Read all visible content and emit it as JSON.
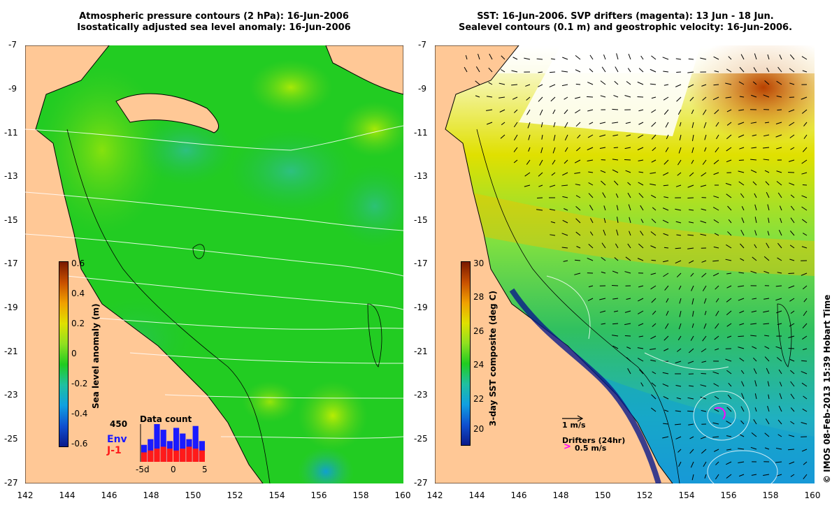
{
  "left_panel": {
    "title_line1": "Atmospheric pressure contours (2 hPa): 16-Jun-2006",
    "title_line2": "Isostatically adjusted sea level anomaly: 16-Jun-2006",
    "colorbar_label": "Sea level anomaly (m)",
    "colorbar_ticks": [
      "0.6",
      "0.4",
      "0.2",
      "0",
      "-0.2",
      "-0.4",
      "-0.6"
    ],
    "data_count_title": "Data count",
    "data_count_max": "450",
    "legend_env": "Env",
    "legend_j1": "J-1",
    "hist_xticks": [
      "-5d",
      "0",
      "5"
    ],
    "hist_env_values": [
      0.45,
      0.6,
      1.0,
      0.85,
      0.55,
      0.9,
      0.75,
      0.6,
      0.95,
      0.55
    ],
    "hist_j1_values": [
      0.25,
      0.3,
      0.35,
      0.4,
      0.35,
      0.3,
      0.35,
      0.4,
      0.35,
      0.3
    ],
    "colors": {
      "env": "#1a1aff",
      "j1": "#ff1a1a"
    }
  },
  "right_panel": {
    "title_line1": "SST: 16-Jun-2006. SVP drifters (magenta): 13 Jun - 18 Jun.",
    "title_line2": "Sealevel contours (0.1 m) and geostrophic velocity: 16-Jun-2006.",
    "colorbar_label": "3-day SST composite (deg C)",
    "colorbar_ticks": [
      "30",
      "28",
      "26",
      "24",
      "22",
      "20"
    ],
    "velocity_scale_label": "1 m/s",
    "drifters_label": "Drifters (24hr)",
    "drifters_scale_label": "0.5 m/s"
  },
  "axes": {
    "y_ticks": [
      "-7",
      "-9",
      "-11",
      "-13",
      "-15",
      "-17",
      "-19",
      "-21",
      "-23",
      "-25",
      "-27"
    ],
    "x_ticks": [
      "142",
      "144",
      "146",
      "148",
      "150",
      "152",
      "154",
      "156",
      "158",
      "160"
    ]
  },
  "copyright": "© IMOS 08-Feb-2013 15:39 Hobart Time"
}
